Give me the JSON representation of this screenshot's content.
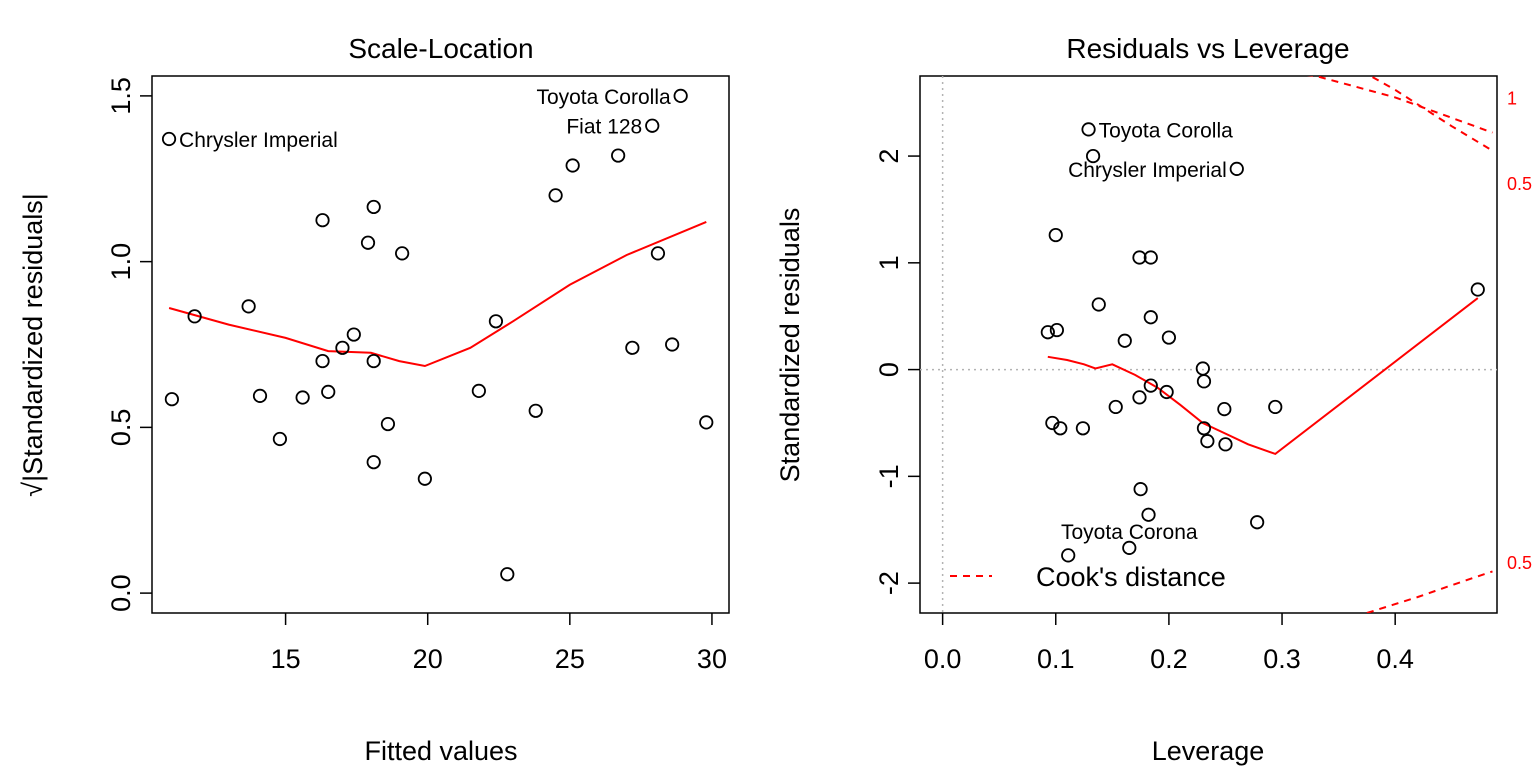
{
  "chart_data": [
    {
      "type": "scatter",
      "title": "Scale-Location",
      "xlabel": "Fitted values",
      "ylabel": "√|Standardized residuals|",
      "xlim": [
        10.3,
        30.6
      ],
      "ylim": [
        -0.06,
        1.56
      ],
      "xticks": [
        "15",
        "20",
        "25",
        "30"
      ],
      "yticks": [
        "0.0",
        "0.5",
        "1.0",
        "1.5"
      ],
      "points": [
        [
          10.9,
          1.37
        ],
        [
          11.0,
          0.585
        ],
        [
          11.8,
          0.835
        ],
        [
          13.7,
          0.865
        ],
        [
          14.1,
          0.595
        ],
        [
          14.8,
          0.465
        ],
        [
          15.6,
          0.59
        ],
        [
          16.3,
          1.125
        ],
        [
          16.3,
          0.7
        ],
        [
          16.5,
          0.607
        ],
        [
          17.0,
          0.74
        ],
        [
          17.4,
          0.78
        ],
        [
          17.9,
          1.057
        ],
        [
          18.1,
          1.165
        ],
        [
          18.1,
          0.7
        ],
        [
          18.1,
          0.395
        ],
        [
          18.6,
          0.51
        ],
        [
          19.1,
          1.025
        ],
        [
          19.9,
          0.345
        ],
        [
          21.8,
          0.61
        ],
        [
          22.4,
          0.82
        ],
        [
          22.8,
          0.057
        ],
        [
          23.8,
          0.55
        ],
        [
          24.5,
          1.2
        ],
        [
          25.1,
          1.29
        ],
        [
          26.7,
          1.32
        ],
        [
          27.2,
          0.74
        ],
        [
          27.9,
          1.41
        ],
        [
          28.1,
          1.025
        ],
        [
          28.6,
          0.75
        ],
        [
          28.9,
          1.5
        ],
        [
          29.8,
          0.515
        ]
      ],
      "smooth_line": [
        [
          10.9,
          0.86
        ],
        [
          13.0,
          0.81
        ],
        [
          15.0,
          0.77
        ],
        [
          16.5,
          0.73
        ],
        [
          18.0,
          0.725
        ],
        [
          19.0,
          0.7
        ],
        [
          19.9,
          0.685
        ],
        [
          21.5,
          0.74
        ],
        [
          23.0,
          0.82
        ],
        [
          25.0,
          0.93
        ],
        [
          27.0,
          1.02
        ],
        [
          29.8,
          1.12
        ]
      ],
      "annotations": [
        {
          "text": "Chrysler Imperial",
          "x": 10.9,
          "y": 1.37,
          "side": "right"
        },
        {
          "text": "Toyota Corolla",
          "x": 28.9,
          "y": 1.5,
          "side": "left"
        },
        {
          "text": "Fiat 128",
          "x": 27.9,
          "y": 1.41,
          "side": "left"
        }
      ],
      "point_color": "#000000",
      "line_color": "#ff0000"
    },
    {
      "type": "scatter",
      "title": "Residuals vs Leverage",
      "xlabel": "Leverage",
      "ylabel": "Standardized residuals",
      "xlim": [
        -0.02,
        0.49
      ],
      "ylim": [
        -2.28,
        2.75
      ],
      "xticks": [
        "0.0",
        "0.1",
        "0.2",
        "0.3",
        "0.4"
      ],
      "yticks": [
        "-2",
        "-1",
        "0",
        "1",
        "2"
      ],
      "points": [
        [
          0.093,
          0.35
        ],
        [
          0.097,
          -0.5
        ],
        [
          0.1,
          1.26
        ],
        [
          0.101,
          0.37
        ],
        [
          0.104,
          -0.55
        ],
        [
          0.111,
          -1.74
        ],
        [
          0.124,
          -0.55
        ],
        [
          0.129,
          2.25
        ],
        [
          0.133,
          2.0
        ],
        [
          0.138,
          0.61
        ],
        [
          0.153,
          -0.35
        ],
        [
          0.161,
          0.27
        ],
        [
          0.165,
          -1.67
        ],
        [
          0.174,
          1.05
        ],
        [
          0.174,
          -0.26
        ],
        [
          0.175,
          -1.12
        ],
        [
          0.182,
          -1.36
        ],
        [
          0.184,
          1.05
        ],
        [
          0.184,
          0.49
        ],
        [
          0.184,
          -0.15
        ],
        [
          0.198,
          -0.21
        ],
        [
          0.2,
          0.3
        ],
        [
          0.23,
          0.01
        ],
        [
          0.231,
          -0.11
        ],
        [
          0.231,
          -0.55
        ],
        [
          0.234,
          -0.67
        ],
        [
          0.249,
          -0.37
        ],
        [
          0.25,
          -0.7
        ],
        [
          0.26,
          1.88
        ],
        [
          0.278,
          -1.43
        ],
        [
          0.294,
          -0.35
        ],
        [
          0.473,
          0.75
        ]
      ],
      "smooth_line": [
        [
          0.093,
          0.12
        ],
        [
          0.11,
          0.09
        ],
        [
          0.125,
          0.05
        ],
        [
          0.135,
          0.01
        ],
        [
          0.15,
          0.05
        ],
        [
          0.17,
          -0.05
        ],
        [
          0.19,
          -0.17
        ],
        [
          0.21,
          -0.33
        ],
        [
          0.23,
          -0.5
        ],
        [
          0.25,
          -0.6
        ],
        [
          0.27,
          -0.7
        ],
        [
          0.294,
          -0.79
        ],
        [
          0.473,
          0.67
        ]
      ],
      "cooks_contours": [
        {
          "label": "1",
          "upper": [
            [
              0.287,
              2.8
            ],
            [
              0.33,
              2.75
            ],
            [
              0.4,
              2.55
            ],
            [
              0.486,
              2.22
            ]
          ],
          "lower": []
        },
        {
          "label": "0.5",
          "upper": [
            [
              0.37,
              2.8
            ],
            [
              0.4,
              2.62
            ],
            [
              0.45,
              2.28
            ],
            [
              0.486,
              2.05
            ]
          ],
          "lower": [
            [
              0.375,
              -2.28
            ],
            [
              0.42,
              -2.13
            ],
            [
              0.45,
              -2.02
            ],
            [
              0.486,
              -1.89
            ]
          ]
        }
      ],
      "cooks_label_positions": [
        {
          "label": "1",
          "y": 2.55
        },
        {
          "label": "0.5",
          "y": 1.75
        },
        {
          "label": "0.5",
          "y": -1.8
        }
      ],
      "annotations": [
        {
          "text": "Toyota Corolla",
          "x": 0.129,
          "y": 2.25,
          "side": "right"
        },
        {
          "text": "Chrysler Imperial",
          "x": 0.26,
          "y": 1.88,
          "side": "left"
        },
        {
          "text": "Toyota Corona",
          "x": 0.165,
          "y": -1.67,
          "side": "above"
        }
      ],
      "legend": {
        "label": "Cook's distance",
        "placement": "bottom-left"
      },
      "point_color": "#000000",
      "line_color": "#ff0000",
      "contour_color": "#ff0000"
    }
  ]
}
